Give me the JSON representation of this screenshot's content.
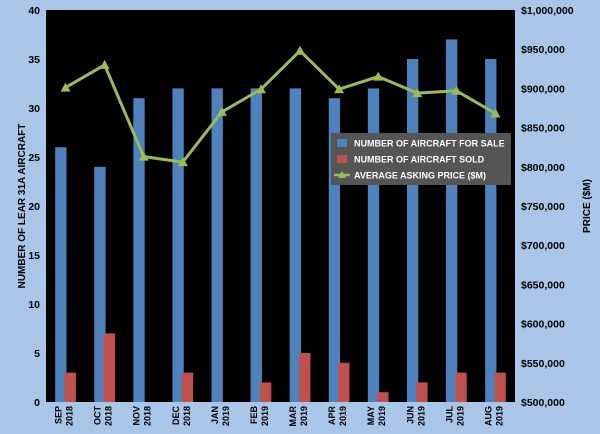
{
  "chart_data": {
    "type": "bar",
    "categories": [
      [
        "SEP",
        "2018"
      ],
      [
        "OCT",
        "2018"
      ],
      [
        "NOV",
        "2018"
      ],
      [
        "DEC",
        "2018"
      ],
      [
        "JAN",
        "2019"
      ],
      [
        "FEB",
        "2019"
      ],
      [
        "MAR",
        "2019"
      ],
      [
        "APR",
        "2019"
      ],
      [
        "MAY",
        "2019"
      ],
      [
        "JUN",
        "2019"
      ],
      [
        "JUL",
        "2019"
      ],
      [
        "AUG",
        "2019"
      ]
    ],
    "series": [
      {
        "name": "NUMBER OF AIRCRAFT FOR SALE",
        "type": "bar",
        "axis": "left",
        "color": "#4f81bd",
        "values": [
          26,
          24,
          31,
          32,
          32,
          32,
          32,
          31,
          32,
          35,
          37,
          35
        ]
      },
      {
        "name": "NUMBER OF AIRCRAFT SOLD",
        "type": "bar",
        "axis": "left",
        "color": "#c0504d",
        "values": [
          3,
          7,
          0,
          3,
          0,
          2,
          5,
          4,
          1,
          2,
          3,
          3
        ]
      },
      {
        "name": "AVERAGE ASKING PRICE ($M)",
        "type": "line",
        "axis": "right",
        "color": "#9bbb59",
        "values": [
          901000,
          930000,
          813000,
          806000,
          870000,
          899000,
          948000,
          899000,
          915000,
          894000,
          897000,
          868000
        ]
      }
    ],
    "ylabel": "NUMBER OF LEAR 31A AIRCRAFT",
    "y2label": "PRICE ($M)",
    "ylim": [
      0,
      40
    ],
    "y2lim": [
      500000,
      1000000
    ],
    "yticks": [
      "0",
      "5",
      "10",
      "15",
      "20",
      "25",
      "30",
      "35",
      "40"
    ],
    "y2ticks": [
      "$500,000",
      "$550,000",
      "$600,000",
      "$650,000",
      "$700,000",
      "$750,000",
      "$800,000",
      "$850,000",
      "$900,000",
      "$950,000",
      "$1,000,000"
    ],
    "legend_position": "right-middle",
    "plot_background": "#000000",
    "page_background": "#a9c6e8",
    "grid": false
  }
}
